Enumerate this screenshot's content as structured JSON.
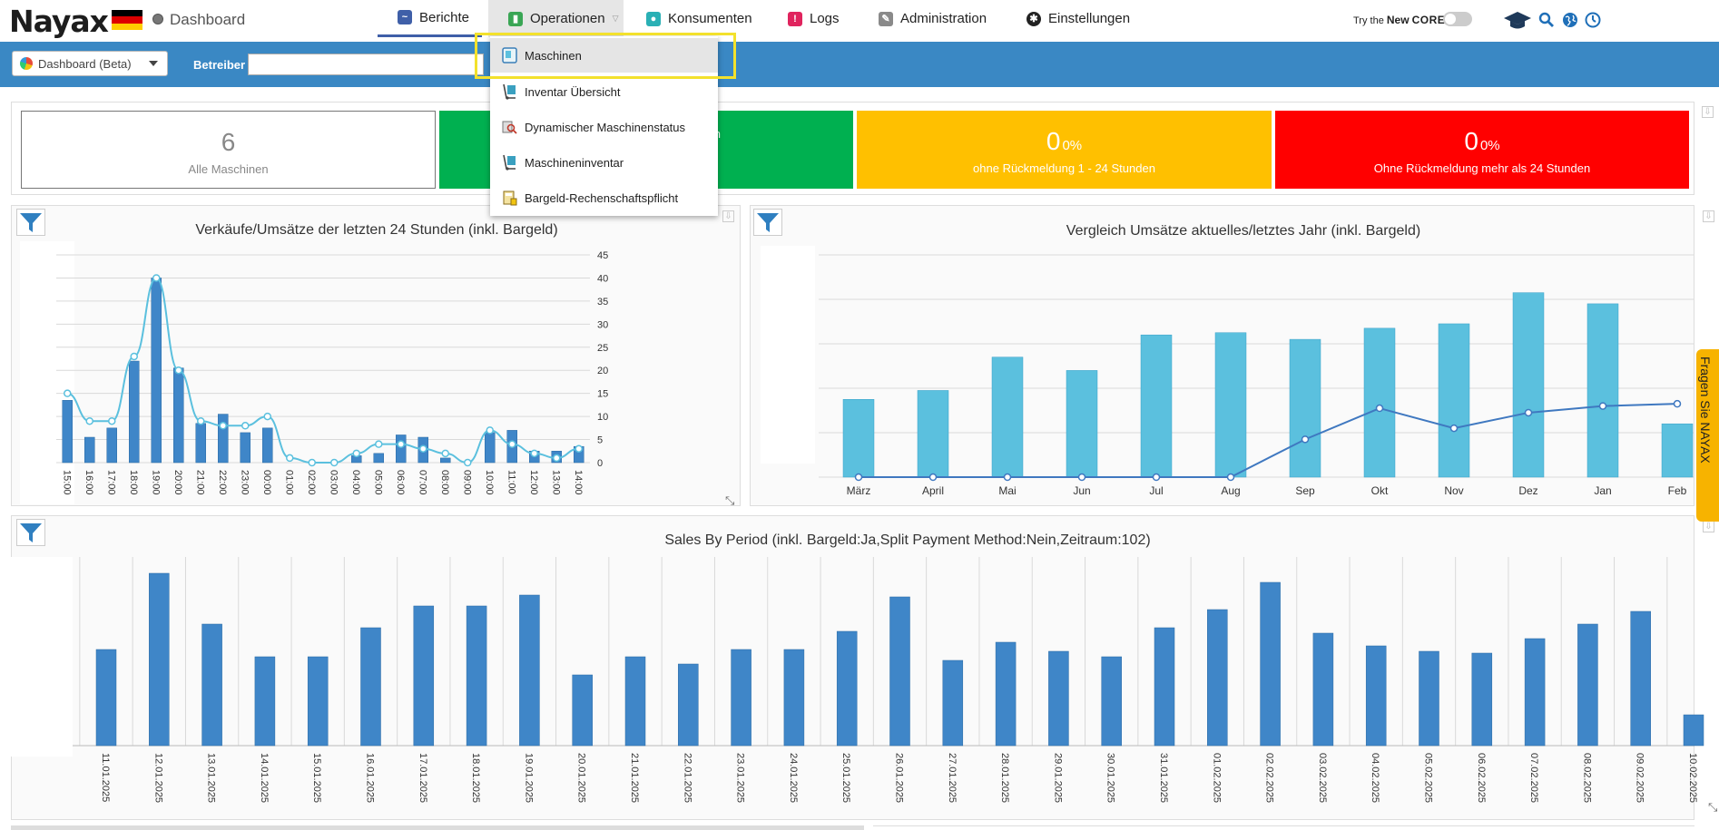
{
  "header": {
    "logo": "Nayax",
    "dashboard_title": "Dashboard",
    "nav": [
      {
        "label": "Berichte"
      },
      {
        "label": "Operationen"
      },
      {
        "label": "Konsumenten"
      },
      {
        "label": "Logs"
      },
      {
        "label": "Administration"
      },
      {
        "label": "Einstellungen"
      }
    ],
    "try_prefix": "Try the ",
    "try_new": "New",
    "try_core": "CORE"
  },
  "operationen_menu": [
    {
      "label": "Maschinen",
      "selected": true
    },
    {
      "label": "Inventar Übersicht"
    },
    {
      "label": "Dynamischer Maschinenstatus"
    },
    {
      "label": "Maschineninventar"
    },
    {
      "label": "Bargeld-Rechenschaftspflicht"
    }
  ],
  "toolbar": {
    "dashboard_select": "Dashboard (Beta)",
    "betreiber_label": "Betreiber",
    "betreiber_value": ""
  },
  "stats": [
    {
      "value": "6",
      "pct": "",
      "label": "Alle Maschinen"
    },
    {
      "value": "",
      "pct": "",
      "label": "n"
    },
    {
      "value": "0",
      "pct": "0%",
      "label": "ohne Rückmeldung 1 - 24 Stunden"
    },
    {
      "value": "0",
      "pct": "0%",
      "label": "Ohne Rückmeldung mehr als 24 Stunden"
    }
  ],
  "colors": {
    "bluebar": "#3a88c4",
    "stat_green": "#00b050",
    "stat_yellow": "#ffc000",
    "stat_red": "#ff0000",
    "bar_dark": "#3f86c8",
    "bar_light": "#5bc0de",
    "highlight": "#f3e12c",
    "side_tab": "#f7b300"
  },
  "side_tab": "Fragen Sie NAYAX",
  "chart_data": [
    {
      "type": "bar",
      "title": "Verkäufe/Umsätze der letzten 24 Stunden (inkl. Bargeld)",
      "categories": [
        "15:00",
        "16:00",
        "17:00",
        "18:00",
        "19:00",
        "20:00",
        "21:00",
        "22:00",
        "23:00",
        "00:00",
        "01:00",
        "02:00",
        "03:00",
        "04:00",
        "05:00",
        "06:00",
        "07:00",
        "08:00",
        "09:00",
        "10:00",
        "11:00",
        "12:00",
        "13:00",
        "14:00"
      ],
      "series": [
        {
          "values": [
            13.5,
            5.5,
            7.5,
            22,
            40,
            20.5,
            8.5,
            10.5,
            6.5,
            7.5,
            0,
            0,
            0,
            1.5,
            2,
            6,
            5.5,
            1,
            0,
            6.5,
            7,
            2.5,
            2.5,
            3.5
          ]
        },
        {
          "values": [
            15,
            9,
            9,
            23,
            40,
            20,
            9,
            8,
            8,
            10,
            1,
            0,
            0,
            2,
            4,
            4,
            3,
            2,
            0,
            7,
            4,
            2,
            1,
            3
          ]
        }
      ],
      "yticks": [
        0,
        5,
        10,
        15,
        20,
        25,
        30,
        35,
        40,
        45
      ],
      "ylim": [
        0,
        45
      ]
    },
    {
      "type": "bar",
      "title": "Vergleich Umsätze aktuelles/letztes Jahr (inkl. Bargeld)",
      "categories": [
        "März",
        "April",
        "Mai",
        "Jun",
        "Jul",
        "Aug",
        "Sep",
        "Okt",
        "Nov",
        "Dez",
        "Jan",
        "Feb"
      ],
      "series": [
        {
          "values": [
            35,
            39,
            54,
            48,
            64,
            65,
            62,
            67,
            69,
            83,
            78,
            24
          ]
        },
        {
          "values": [
            0,
            0,
            0,
            0,
            0,
            0,
            17,
            31,
            22,
            29,
            32,
            33
          ]
        }
      ],
      "ylim": [
        0,
        100
      ]
    },
    {
      "type": "bar",
      "title": "Sales By Period (inkl. Bargeld:Ja,Split Payment Method:Nein,Zeitraum:102)",
      "categories": [
        "11.01.2025",
        "12.01.2025",
        "13.01.2025",
        "14.01.2025",
        "15.01.2025",
        "16.01.2025",
        "17.01.2025",
        "18.01.2025",
        "19.01.2025",
        "20.01.2025",
        "21.01.2025",
        "22.01.2025",
        "23.01.2025",
        "24.01.2025",
        "25.01.2025",
        "26.01.2025",
        "27.01.2025",
        "28.01.2025",
        "29.01.2025",
        "30.01.2025",
        "31.01.2025",
        "01.02.2025",
        "02.02.2025",
        "03.02.2025",
        "04.02.2025",
        "05.02.2025",
        "06.02.2025",
        "07.02.2025",
        "08.02.2025",
        "09.02.2025",
        "10.02.2025"
      ],
      "values": [
        53,
        95,
        67,
        49,
        49,
        65,
        77,
        77,
        83,
        39,
        49,
        45,
        53,
        53,
        63,
        82,
        47,
        57,
        52,
        49,
        65,
        75,
        90,
        62,
        55,
        52,
        51,
        59,
        67,
        74,
        17
      ],
      "ylim": [
        0,
        100
      ]
    }
  ]
}
